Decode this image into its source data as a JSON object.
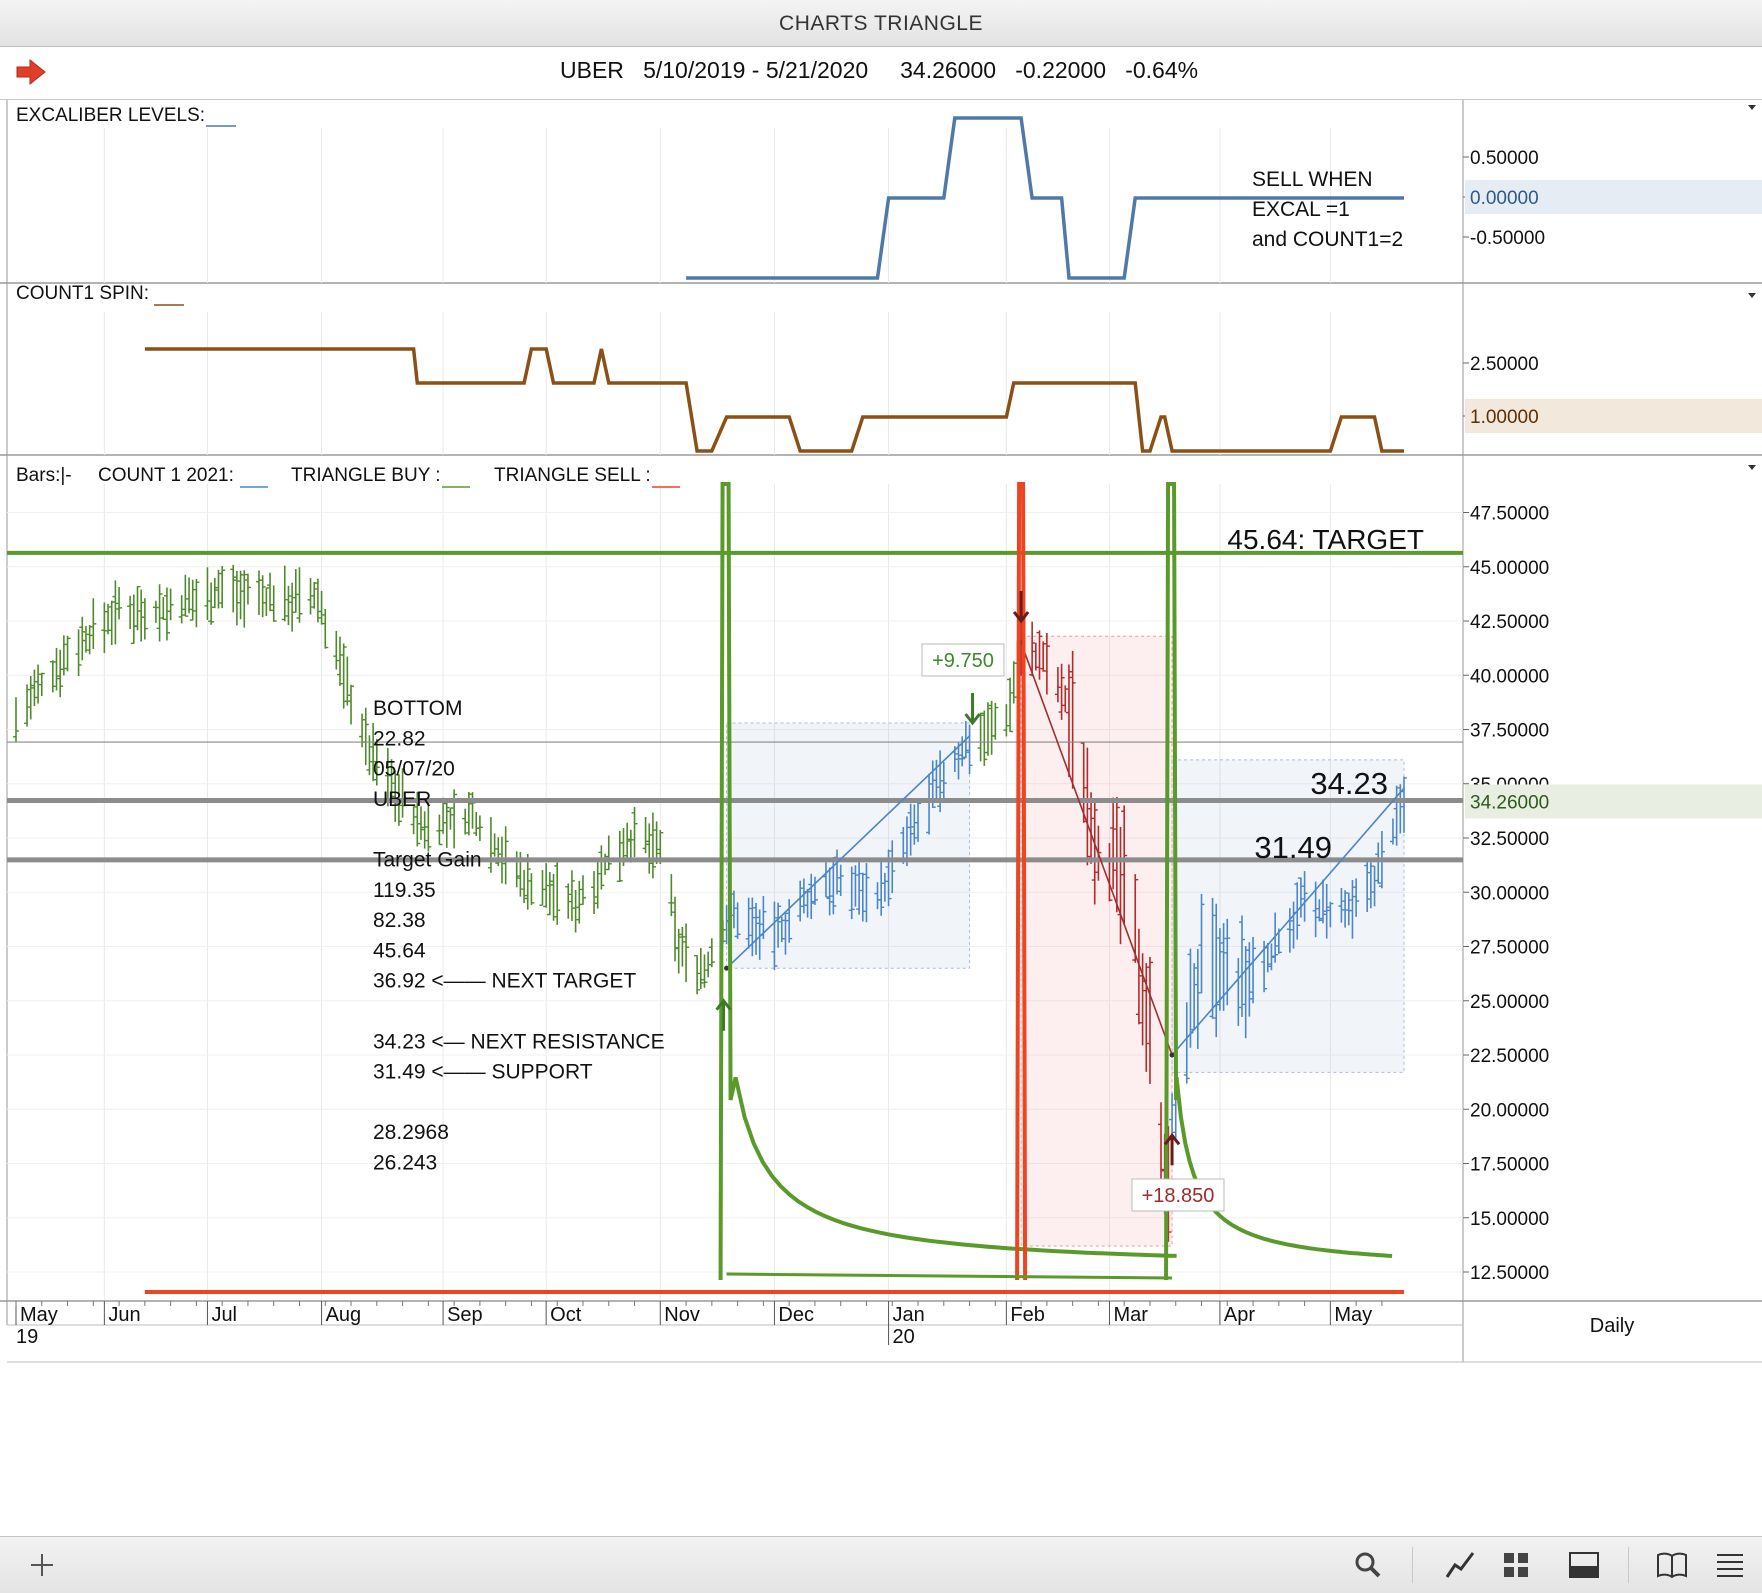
{
  "window": {
    "title": "CHARTS TRIANGLE"
  },
  "quote": {
    "symbol": "UBER",
    "range": "5/10/2019 - 5/21/2020",
    "last": "34.26000",
    "change": "-0.22000",
    "pct": "-0.64%"
  },
  "panes": {
    "excal": {
      "legend": "EXCALIBER LEVELS:___",
      "ticks": [
        "0.50000",
        "0.00000",
        "-0.50000"
      ],
      "current": "0.00000",
      "note": [
        "SELL WHEN",
        "EXCAL =1",
        "and COUNT1=2"
      ],
      "color": "#4f79a8"
    },
    "count": {
      "legend": "COUNT1 SPIN:___",
      "ticks": [
        "2.50000",
        "1.00000"
      ],
      "current": "1.00000",
      "color": "#8a5016"
    },
    "main": {
      "legend": {
        "bars": "Bars:|-",
        "count": "COUNT 1 2021:___",
        "buy": "TRIANGLE BUY :___",
        "sell": "TRIANGLE SELL :___"
      },
      "ticks": [
        "47.50000",
        "45.00000",
        "42.50000",
        "40.00000",
        "37.50000",
        "35.00000",
        "32.50000",
        "30.00000",
        "27.50000",
        "25.00000",
        "22.50000",
        "20.00000",
        "17.50000",
        "15.00000",
        "12.50000"
      ],
      "current": "34.26000",
      "target_label": "45.64: TARGET",
      "resistance_label": "34.23",
      "support_label": "31.49",
      "gain_labels": [
        "+9.750",
        "+18.850"
      ],
      "notes": [
        "BOTTOM",
        "22.82",
        "05/07/20",
        "UBER",
        "",
        "Target Gain",
        "119.35",
        "82.38",
        "45.64",
        "36.92 <—— NEXT TARGET",
        "",
        "34.23 <— NEXT RESISTANCE",
        "31.49 <—— SUPPORT",
        "",
        "28.2968",
        "26.243"
      ]
    }
  },
  "xaxis": {
    "months": [
      "May",
      "Jun",
      "Jul",
      "Aug",
      "Sep",
      "Oct",
      "Nov",
      "Dec",
      "Jan",
      "Feb",
      "Mar",
      "Apr",
      "May"
    ],
    "years": [
      "19",
      "20"
    ],
    "period": "Daily"
  },
  "colors": {
    "up": "#4e8a2b",
    "down": "#b02b2b",
    "blue": "#4a86c8",
    "buy": "#5a9a2a",
    "sell": "#ee4422",
    "grey": "#888888"
  },
  "chart_data": [
    {
      "type": "line",
      "title": "EXCALIBER LEVELS",
      "ylim": [
        -1,
        1
      ],
      "x": [
        "2019-11-08",
        "2019-12-30",
        "2020-01-02",
        "2020-01-17",
        "2020-01-20",
        "2020-02-07",
        "2020-02-10",
        "2020-02-18",
        "2020-02-20",
        "2020-03-06",
        "2020-03-09",
        "2020-05-21"
      ],
      "values": [
        -1,
        -1,
        0,
        0,
        1,
        1,
        0,
        0,
        -1,
        -1,
        0,
        0
      ]
    },
    {
      "type": "line",
      "title": "COUNT1 SPIN",
      "ylim": [
        0,
        4
      ],
      "x": [
        "2019-06-14",
        "2019-08-26",
        "2019-08-27",
        "2019-09-25",
        "2019-09-27",
        "2019-10-01",
        "2019-10-03",
        "2019-10-14",
        "2019-10-16",
        "2019-10-18",
        "2019-11-08",
        "2019-11-11",
        "2019-11-15",
        "2019-11-19",
        "2019-11-20",
        "2019-12-06",
        "2019-12-09",
        "2019-12-23",
        "2019-12-26",
        "2020-02-03",
        "2020-02-05",
        "2020-03-09",
        "2020-03-11",
        "2020-03-13",
        "2020-03-16",
        "2020-03-17",
        "2020-03-19",
        "2020-05-01",
        "2020-05-04",
        "2020-05-13",
        "2020-05-15",
        "2020-05-21"
      ],
      "values": [
        3,
        3,
        2,
        2,
        3,
        3,
        2,
        2,
        3,
        2,
        2,
        0,
        0,
        1,
        1,
        1,
        0,
        0,
        1,
        1,
        2,
        2,
        0,
        0,
        1,
        1,
        0,
        0,
        1,
        1,
        0,
        0
      ]
    },
    {
      "type": "bar",
      "title": "UBER",
      "ylim": [
        11.5,
        49
      ],
      "price_series": [
        [
          "2019-05-10",
          38
        ],
        [
          "2019-05-24",
          41
        ],
        [
          "2019-06-07",
          43
        ],
        [
          "2019-06-21",
          43
        ],
        [
          "2019-07-05",
          44
        ],
        [
          "2019-07-19",
          43.5
        ],
        [
          "2019-07-31",
          43.5
        ],
        [
          "2019-08-07",
          40
        ],
        [
          "2019-08-14",
          36.5
        ],
        [
          "2019-08-28",
          33
        ],
        [
          "2019-09-11",
          33.5
        ],
        [
          "2019-09-25",
          30.5
        ],
        [
          "2019-10-09",
          29.5
        ],
        [
          "2019-10-23",
          32.5
        ],
        [
          "2019-11-01",
          32
        ],
        [
          "2019-11-06",
          27.5
        ],
        [
          "2019-11-13",
          26.3
        ],
        [
          "2019-11-20",
          29
        ],
        [
          "2019-12-02",
          28
        ],
        [
          "2019-12-16",
          30.5
        ],
        [
          "2019-12-31",
          30
        ],
        [
          "2020-01-14",
          34.5
        ],
        [
          "2020-01-24",
          37
        ],
        [
          "2020-02-03",
          38
        ],
        [
          "2020-02-07",
          41.5
        ],
        [
          "2020-02-14",
          40.5
        ],
        [
          "2020-02-21",
          38
        ],
        [
          "2020-02-28",
          32
        ],
        [
          "2020-03-06",
          30.5
        ],
        [
          "2020-03-13",
          24
        ],
        [
          "2020-03-18",
          16
        ],
        [
          "2020-03-20",
          21.5
        ],
        [
          "2020-03-27",
          26.5
        ],
        [
          "2020-04-09",
          25.5
        ],
        [
          "2020-04-23",
          29.5
        ],
        [
          "2020-05-01",
          29
        ],
        [
          "2020-05-07",
          29
        ],
        [
          "2020-05-14",
          31
        ],
        [
          "2020-05-21",
          34.26
        ]
      ],
      "target": 45.64,
      "resistance": 34.23,
      "support": 31.49,
      "thin_line": 36.92,
      "triangle_buy_dates": [
        "2019-11-19",
        "2020-03-19"
      ],
      "triangle_sell_dates": [
        "2020-02-07"
      ],
      "trade_boxes": [
        {
          "from": "2019-11-19",
          "to": "2020-01-24",
          "low": 26.5,
          "high": 37.8,
          "gain": 9.75
        },
        {
          "from": "2020-02-07",
          "to": "2020-03-19",
          "low": 13.7,
          "high": 41.8,
          "gain": 18.85
        },
        {
          "from": "2020-03-19",
          "to": "2020-05-21",
          "low": 21.7,
          "high": 36.1
        }
      ],
      "trend_lines": [
        {
          "from": [
            "2019-11-19",
            26.5
          ],
          "to": [
            "2020-01-24",
            37.2
          ]
        },
        {
          "from": [
            "2020-02-07",
            41.5
          ],
          "to": [
            "2020-03-19",
            22.5
          ]
        },
        {
          "from": [
            "2020-03-19",
            22.5
          ],
          "to": [
            "2020-05-21",
            34.8
          ]
        }
      ]
    }
  ]
}
